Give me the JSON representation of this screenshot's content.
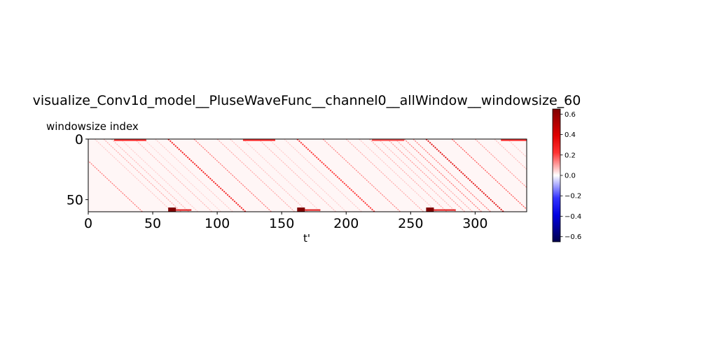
{
  "chart_data": {
    "type": "heatmap",
    "title": "visualize_Conv1d_model__PluseWaveFunc__channel0__allWindow__windowsize_60",
    "xlabel": "t'",
    "ylabel": "windowsize index",
    "xlim": [
      0,
      340
    ],
    "ylim": [
      0,
      60
    ],
    "x_ticks": [
      0,
      50,
      100,
      150,
      200,
      250,
      300
    ],
    "y_ticks": [
      0,
      50
    ],
    "colormap": "seismic",
    "color_range": [
      -0.65,
      0.65
    ],
    "colorbar_ticks": [
      0.6,
      0.4,
      0.2,
      0.0,
      -0.2,
      -0.4,
      -0.6
    ],
    "colorbar_tick_labels": [
      "0.6",
      "0.4",
      "0.2",
      "0.0",
      "−0.2",
      "−0.4",
      "−0.6"
    ],
    "background_value": 0.01,
    "diagonal_bands": [
      {
        "start_t": -18,
        "value": 0.2
      },
      {
        "start_t": 5,
        "value": 0.08
      },
      {
        "start_t": 12,
        "value": 0.12
      },
      {
        "start_t": 18,
        "value": 0.1
      },
      {
        "start_t": 25,
        "value": 0.07
      },
      {
        "start_t": 36,
        "value": 0.1
      },
      {
        "start_t": 43,
        "value": 0.06
      },
      {
        "start_t": 52,
        "value": 0.08
      },
      {
        "start_t": 62,
        "value": 0.35
      },
      {
        "start_t": 82,
        "value": 0.2
      },
      {
        "start_t": 100,
        "value": 0.12
      },
      {
        "start_t": 110,
        "value": 0.09
      },
      {
        "start_t": 120,
        "value": 0.07
      },
      {
        "start_t": 132,
        "value": 0.1
      },
      {
        "start_t": 140,
        "value": 0.07
      },
      {
        "start_t": 152,
        "value": 0.08
      },
      {
        "start_t": 162,
        "value": 0.3
      },
      {
        "start_t": 182,
        "value": 0.18
      },
      {
        "start_t": 200,
        "value": 0.12
      },
      {
        "start_t": 210,
        "value": 0.08
      },
      {
        "start_t": 218,
        "value": 0.12
      },
      {
        "start_t": 225,
        "value": 0.1
      },
      {
        "start_t": 232,
        "value": 0.15
      },
      {
        "start_t": 238,
        "value": 0.12
      },
      {
        "start_t": 245,
        "value": 0.2
      },
      {
        "start_t": 252,
        "value": 0.2
      },
      {
        "start_t": 262,
        "value": 0.4
      },
      {
        "start_t": 282,
        "value": 0.25
      },
      {
        "start_t": 300,
        "value": 0.15
      },
      {
        "start_t": 315,
        "value": 0.1
      },
      {
        "start_t": 325,
        "value": 0.08
      }
    ],
    "top_row_segments": [
      {
        "t_start": 20,
        "t_end": 45,
        "value": 0.3
      },
      {
        "t_start": 120,
        "t_end": 145,
        "value": 0.3
      },
      {
        "t_start": 220,
        "t_end": 245,
        "value": 0.25
      },
      {
        "t_start": 320,
        "t_end": 340,
        "value": 0.3
      }
    ],
    "bottom_hotspots": [
      {
        "t_start": 62,
        "t_end": 68,
        "value": 0.65,
        "tail_end": 80,
        "tail_value": 0.4
      },
      {
        "t_start": 162,
        "t_end": 168,
        "value": 0.65,
        "tail_end": 180,
        "tail_value": 0.4
      },
      {
        "t_start": 262,
        "t_end": 268,
        "value": 0.65,
        "tail_end": 285,
        "tail_value": 0.4
      }
    ]
  }
}
